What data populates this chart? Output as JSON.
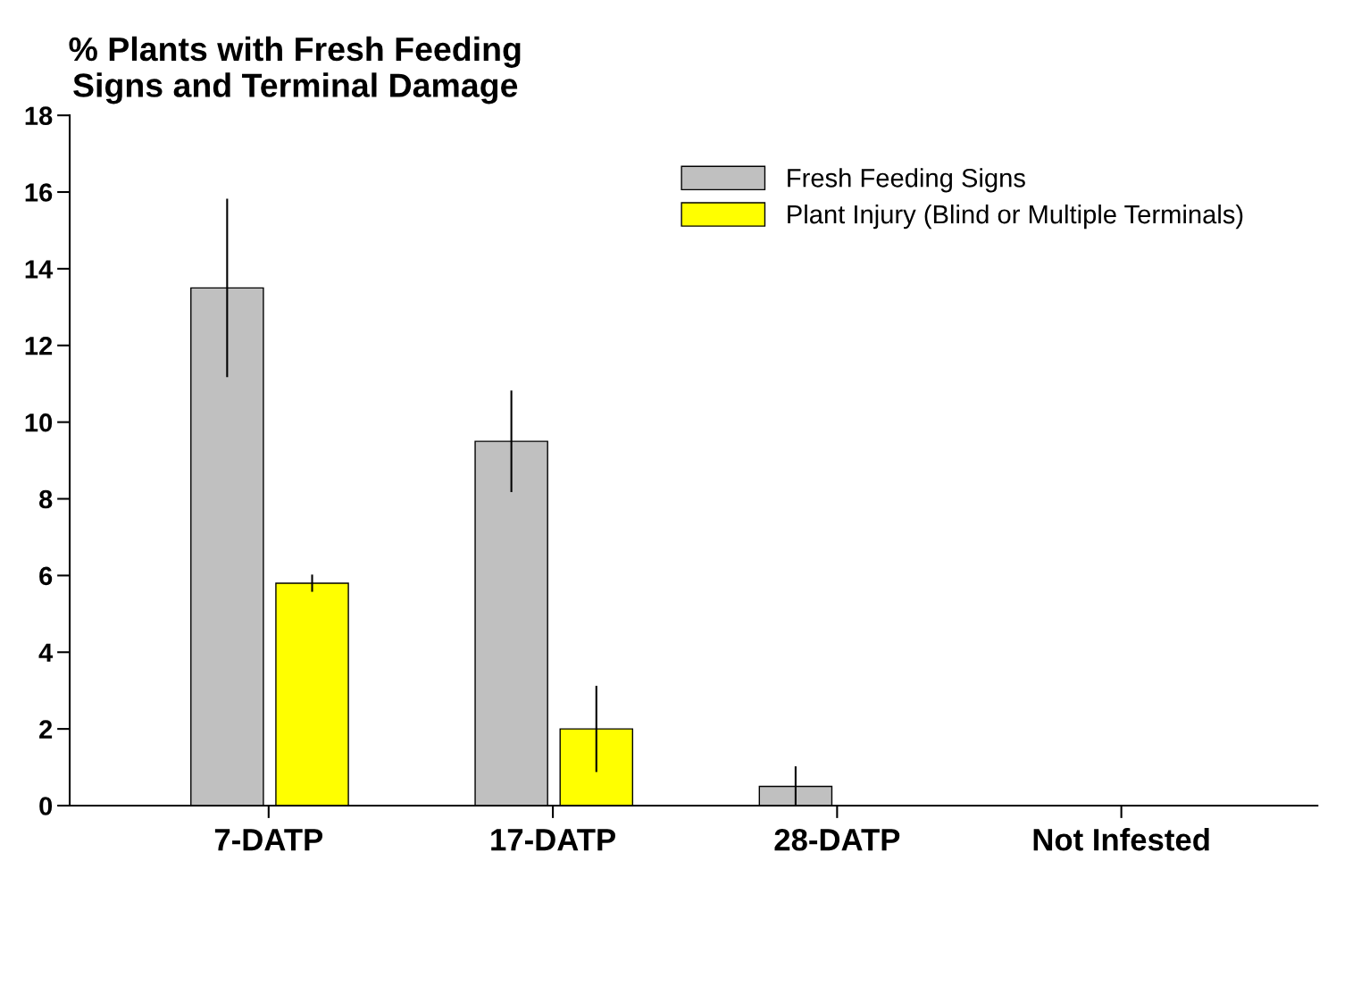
{
  "chart_data": {
    "type": "bar",
    "title": "% Plants with Fresh Feeding\nSigns and Terminal Damage",
    "categories": [
      "7-DATP",
      "17-DATP",
      "28-DATP",
      "Not Infested"
    ],
    "series": [
      {
        "name": "Fresh Feeding Signs",
        "color": "#c0c0c0",
        "values": [
          13.5,
          9.5,
          0.5,
          0
        ],
        "errors": [
          2.3,
          1.3,
          0.5,
          null
        ]
      },
      {
        "name": "Plant Injury (Blind or Multiple Terminals)",
        "color": "#ffff00",
        "values": [
          5.8,
          2.0,
          0,
          0
        ],
        "errors": [
          0.2,
          1.1,
          null,
          null
        ]
      }
    ],
    "ylim": [
      0,
      18
    ],
    "yticks": [
      0,
      2,
      4,
      6,
      8,
      10,
      12,
      14,
      16,
      18
    ],
    "grid": false,
    "legend": "top right"
  }
}
